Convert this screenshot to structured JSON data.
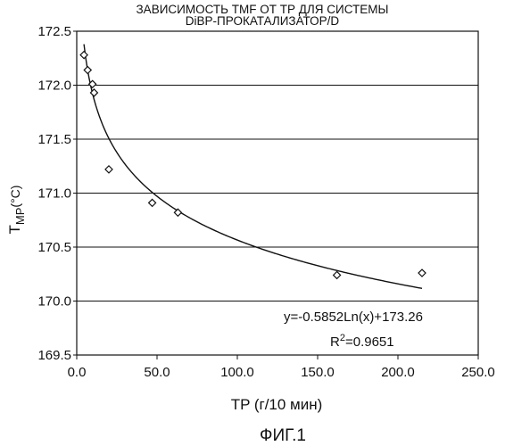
{
  "chart_data": {
    "type": "scatter",
    "title_line1": "ЗАВИСИМОСТЬ ТМF ОТ ТР ДЛЯ СИСТЕМЫ",
    "title_line2": "DiBP-ПРОКАТАЛИЗАТОР/D",
    "xlabel": "TP (г/10 мин)",
    "ylabel_main": "T",
    "ylabel_sub": "MP",
    "ylabel_unit": "(°C)",
    "xlim": [
      0,
      250
    ],
    "ylim": [
      169.5,
      172.5
    ],
    "x_ticks": [
      "0.0",
      "50.0",
      "100.0",
      "150.0",
      "200.0",
      "250.0"
    ],
    "y_ticks": [
      "169.5",
      "170.0",
      "170.5",
      "171.0",
      "171.5",
      "172.0",
      "172.5"
    ],
    "grid": "horizontal",
    "series": [
      {
        "marker": "open-diamond",
        "points": [
          {
            "x": 4.5,
            "y": 172.28
          },
          {
            "x": 6.8,
            "y": 172.14
          },
          {
            "x": 9.8,
            "y": 172.01
          },
          {
            "x": 10.8,
            "y": 171.93
          },
          {
            "x": 20.0,
            "y": 171.22
          },
          {
            "x": 47.0,
            "y": 170.91
          },
          {
            "x": 63.0,
            "y": 170.82
          },
          {
            "x": 162.0,
            "y": 170.24
          },
          {
            "x": 215.0,
            "y": 170.26
          }
        ]
      }
    ],
    "trendline": {
      "type": "logarithmic",
      "a": -0.5852,
      "b": 173.26,
      "x_range": [
        4.5,
        215
      ]
    },
    "equation": "y=-0.5852Ln(x)+173.26",
    "r2_prefix": "R",
    "r2_exp": "2",
    "r2_value": "=0.9651"
  },
  "figure_label": "ФИГ.1"
}
